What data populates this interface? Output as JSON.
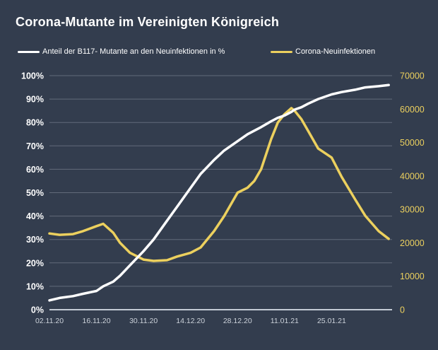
{
  "title": "Corona-Mutante im Vereinigten Königreich",
  "colors": {
    "background": "#333d4e",
    "accent_yellow": "#ecd05e",
    "line_white": "#ffffff",
    "grid": "#a9b2bf",
    "axis_line": "#ccd3dc",
    "x_label": "#ccd2da"
  },
  "legend": {
    "b117_label": "Anteil der B117- Mutante an den Neuinfektionen in %",
    "infections_label": "Corona-Neuinfektionen"
  },
  "chart_data": {
    "type": "line",
    "title": "Corona-Mutante im Vereinigten Königreich",
    "grid": "horizontal",
    "legend_position": "top",
    "x_tick_labels": [
      "02.11.20",
      "16.11.20",
      "30.11.20",
      "14.12.20",
      "28.12.20",
      "11.01.21",
      "25.01.21"
    ],
    "y_axis_left": {
      "series": "Anteil der B117- Mutante an den Neuinfektionen in %",
      "min": 0,
      "max": 100,
      "step": 10,
      "tick_labels": [
        "0%",
        "10%",
        "20%",
        "30%",
        "40%",
        "50%",
        "60%",
        "70%",
        "80%",
        "90%",
        "100%"
      ],
      "color": "#ffffff"
    },
    "y_axis_right": {
      "series": "Corona-Neuinfektionen",
      "min": 0,
      "max": 70000,
      "step": 10000,
      "tick_labels": [
        "0",
        "10000",
        "20000",
        "30000",
        "40000",
        "50000",
        "60000",
        "70000"
      ],
      "color": "#ecd05e"
    },
    "dates": [
      "02.11.20",
      "05.11.20",
      "09.11.20",
      "12.11.20",
      "16.11.20",
      "18.11.20",
      "21.11.20",
      "23.11.20",
      "26.11.20",
      "30.11.20",
      "03.12.20",
      "07.12.20",
      "10.12.20",
      "14.12.20",
      "17.12.20",
      "21.12.20",
      "24.12.20",
      "28.12.20",
      "31.12.20",
      "02.01.21",
      "04.01.21",
      "07.01.21",
      "09.01.21",
      "11.01.21",
      "13.01.21",
      "14.01.21",
      "16.01.21",
      "18.01.21",
      "21.01.21",
      "25.01.21",
      "28.01.21",
      "01.02.21",
      "04.02.21",
      "08.02.21",
      "11.02.21"
    ],
    "series": [
      {
        "name": "Anteil der B117- Mutante an den Neuinfektionen in %",
        "axis": "left",
        "color": "#ffffff",
        "values": [
          4,
          5,
          5.8,
          6.8,
          8,
          10,
          12,
          14.5,
          19,
          25,
          30,
          38,
          44,
          52,
          58,
          64,
          68,
          72,
          75,
          76.5,
          78,
          80.5,
          82,
          83,
          84.5,
          85.5,
          86.5,
          88,
          90,
          92,
          93,
          94,
          95,
          95.5,
          96
        ]
      },
      {
        "name": "Corona-Neuinfektionen",
        "axis": "right",
        "color": "#ecd05e",
        "values": [
          22800,
          22400,
          22600,
          23500,
          25000,
          25700,
          23000,
          20000,
          17000,
          15000,
          14600,
          14800,
          15900,
          17000,
          18600,
          23500,
          28000,
          35000,
          36500,
          38500,
          42000,
          51000,
          56000,
          58500,
          60300,
          59500,
          57000,
          53500,
          48200,
          45500,
          39700,
          33000,
          28100,
          23500,
          21200
        ]
      }
    ]
  }
}
